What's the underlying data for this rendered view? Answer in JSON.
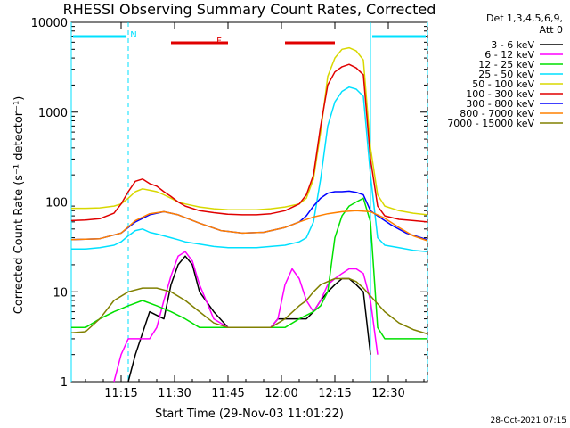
{
  "chart_data": {
    "type": "line",
    "title": "RHESSI Observing Summary Count Rates, Corrected",
    "xlabel": "Start Time (29-Nov-03 11:01:22)",
    "ylabel": "Corrected Count Rate (s⁻¹ detector⁻¹)",
    "yscale": "log",
    "ylim": [
      1,
      10000
    ],
    "xlim_minutes": [
      0,
      100
    ],
    "x_ticks": [
      {
        "m": 14,
        "label": "11:15"
      },
      {
        "m": 29,
        "label": "11:30"
      },
      {
        "m": 44,
        "label": "11:45"
      },
      {
        "m": 59,
        "label": "12:00"
      },
      {
        "m": 74,
        "label": "12:15"
      },
      {
        "m": 89,
        "label": "12:30"
      }
    ],
    "y_ticks": [
      {
        "v": 1,
        "label": "1"
      },
      {
        "v": 10,
        "label": "10"
      },
      {
        "v": 100,
        "label": "100"
      },
      {
        "v": 1000,
        "label": "1000"
      },
      {
        "v": 10000,
        "label": "10000"
      }
    ],
    "legend_header": [
      "Det 1,3,4,5,6,9,",
      "Att 0"
    ],
    "footer": "28-Oct-2021 07:15",
    "flags": [
      {
        "label": "N",
        "color": "#00e0ff",
        "segments": [
          [
            0,
            16
          ],
          [
            84,
            100
          ]
        ]
      },
      {
        "label": "F",
        "color": "#e00000",
        "segments": [
          [
            28,
            44
          ],
          [
            60,
            74
          ]
        ]
      }
    ],
    "vlines": [
      {
        "m": 0,
        "style": "solid",
        "color": "#00e0ff"
      },
      {
        "m": 16,
        "style": "dashed",
        "color": "#00e0ff"
      },
      {
        "m": 84,
        "style": "solid",
        "color": "#00e0ff"
      },
      {
        "m": 100,
        "style": "dashed",
        "color": "#00e0ff"
      }
    ],
    "series": [
      {
        "name": "3 - 6 keV",
        "color": "#000000",
        "x": [
          0,
          8,
          14,
          16,
          18,
          22,
          26,
          28,
          30,
          32,
          34,
          36,
          40,
          44,
          48,
          52,
          56,
          58,
          60,
          62,
          64,
          66,
          68,
          70,
          72,
          74,
          76,
          78,
          80,
          82,
          84,
          86,
          88
        ],
        "y": [
          null,
          null,
          null,
          1,
          2,
          6,
          5,
          12,
          20,
          25,
          20,
          10,
          6,
          4,
          4,
          4,
          4,
          5,
          5,
          5,
          5,
          5,
          6,
          8,
          10,
          12,
          14,
          14,
          12,
          10,
          2,
          null,
          null
        ]
      },
      {
        "name": "6 - 12 keV",
        "color": "#ff00ff",
        "x": [
          0,
          6,
          12,
          14,
          16,
          18,
          20,
          22,
          24,
          26,
          28,
          30,
          32,
          34,
          36,
          40,
          44,
          48,
          52,
          56,
          58,
          60,
          62,
          64,
          66,
          68,
          70,
          72,
          74,
          76,
          78,
          80,
          82,
          84,
          86,
          88,
          100
        ],
        "y": [
          null,
          null,
          1,
          2,
          3,
          3,
          3,
          3,
          4,
          8,
          15,
          25,
          28,
          22,
          12,
          5,
          4,
          4,
          4,
          4,
          5,
          12,
          18,
          14,
          8,
          6,
          8,
          12,
          14,
          16,
          18,
          18,
          16,
          8,
          2,
          null,
          null
        ]
      },
      {
        "name": "12 - 25 keV",
        "color": "#00e000",
        "x": [
          0,
          4,
          8,
          12,
          16,
          20,
          24,
          28,
          32,
          36,
          40,
          44,
          48,
          52,
          56,
          60,
          64,
          68,
          70,
          72,
          74,
          76,
          78,
          80,
          82,
          84,
          86,
          88,
          100
        ],
        "y": [
          4,
          4,
          5,
          6,
          7,
          8,
          7,
          6,
          5,
          4,
          4,
          4,
          4,
          4,
          4,
          4,
          5,
          6,
          7,
          10,
          40,
          70,
          90,
          100,
          110,
          60,
          4,
          3,
          3
        ]
      },
      {
        "name": "25 - 50 keV",
        "color": "#00e0ff",
        "x": [
          0,
          4,
          8,
          12,
          14,
          16,
          18,
          20,
          22,
          24,
          26,
          28,
          30,
          32,
          36,
          40,
          44,
          48,
          52,
          56,
          60,
          64,
          66,
          68,
          70,
          72,
          74,
          76,
          78,
          80,
          82,
          84,
          86,
          88,
          92,
          96,
          100
        ],
        "y": [
          30,
          30,
          31,
          33,
          36,
          42,
          48,
          50,
          46,
          44,
          42,
          40,
          38,
          36,
          34,
          32,
          31,
          31,
          31,
          32,
          33,
          36,
          40,
          60,
          180,
          700,
          1300,
          1700,
          1900,
          1800,
          1500,
          200,
          40,
          33,
          31,
          29,
          28
        ]
      },
      {
        "name": "50 - 100 keV",
        "color": "#d8d800",
        "x": [
          0,
          4,
          8,
          12,
          14,
          16,
          18,
          20,
          22,
          24,
          26,
          28,
          30,
          32,
          36,
          40,
          44,
          48,
          52,
          56,
          60,
          64,
          66,
          68,
          70,
          72,
          74,
          76,
          78,
          80,
          82,
          84,
          86,
          88,
          92,
          96,
          100
        ],
        "y": [
          85,
          85,
          86,
          90,
          95,
          110,
          130,
          140,
          135,
          130,
          120,
          110,
          100,
          95,
          88,
          84,
          82,
          82,
          82,
          84,
          88,
          95,
          110,
          180,
          600,
          2500,
          4000,
          5000,
          5200,
          4800,
          3800,
          400,
          120,
          90,
          80,
          75,
          72
        ]
      },
      {
        "name": "100 - 300 keV",
        "color": "#e00000",
        "x": [
          0,
          4,
          8,
          12,
          14,
          16,
          18,
          20,
          22,
          24,
          26,
          28,
          30,
          32,
          36,
          40,
          44,
          48,
          52,
          56,
          60,
          64,
          66,
          68,
          70,
          72,
          74,
          76,
          78,
          80,
          82,
          84,
          86,
          88,
          92,
          96,
          100
        ],
        "y": [
          62,
          63,
          65,
          75,
          95,
          130,
          170,
          180,
          160,
          150,
          130,
          115,
          100,
          90,
          80,
          76,
          73,
          72,
          72,
          74,
          80,
          95,
          120,
          200,
          700,
          2000,
          2800,
          3200,
          3400,
          3100,
          2600,
          300,
          90,
          70,
          64,
          62,
          60
        ]
      },
      {
        "name": "300 - 800 keV",
        "color": "#0000ff",
        "x": [
          0,
          8,
          14,
          18,
          22,
          26,
          30,
          36,
          42,
          48,
          54,
          60,
          64,
          66,
          68,
          70,
          72,
          74,
          76,
          78,
          80,
          82,
          84,
          86,
          90,
          94,
          100
        ],
        "y": [
          38,
          39,
          45,
          60,
          72,
          78,
          72,
          58,
          48,
          45,
          46,
          52,
          60,
          70,
          90,
          110,
          125,
          130,
          130,
          132,
          128,
          120,
          80,
          70,
          55,
          45,
          38
        ]
      },
      {
        "name": "800 - 7000 keV",
        "color": "#ff8000",
        "x": [
          0,
          8,
          14,
          18,
          22,
          26,
          30,
          36,
          42,
          48,
          54,
          60,
          64,
          68,
          72,
          76,
          80,
          84,
          88,
          92,
          96,
          100
        ],
        "y": [
          38,
          39,
          45,
          62,
          74,
          78,
          72,
          58,
          48,
          45,
          46,
          52,
          60,
          68,
          74,
          78,
          80,
          78,
          66,
          52,
          42,
          37
        ]
      },
      {
        "name": "7000 - 15000 keV",
        "color": "#808000",
        "x": [
          0,
          4,
          8,
          12,
          16,
          20,
          24,
          28,
          32,
          36,
          40,
          44,
          48,
          52,
          56,
          60,
          64,
          66,
          68,
          70,
          72,
          74,
          76,
          78,
          80,
          82,
          84,
          88,
          92,
          96,
          100
        ],
        "y": [
          3.5,
          3.6,
          5,
          8,
          10,
          11,
          11,
          10,
          8,
          6,
          4.5,
          4,
          4,
          4,
          4,
          5,
          7,
          8,
          10,
          12,
          13,
          14,
          14,
          14,
          13,
          11,
          9,
          6,
          4.5,
          3.8,
          3.4
        ]
      }
    ]
  }
}
